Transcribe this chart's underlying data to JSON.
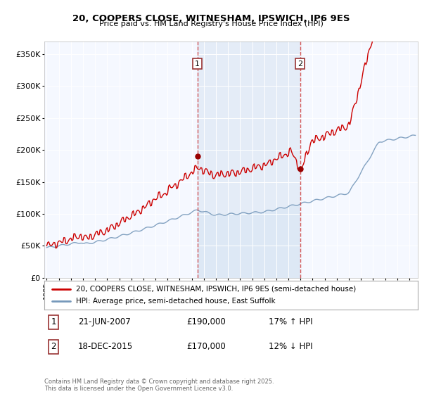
{
  "title1": "20, COOPERS CLOSE, WITNESHAM, IPSWICH, IP6 9ES",
  "title2": "Price paid vs. HM Land Registry's House Price Index (HPI)",
  "ylabel_ticks": [
    "£0",
    "£50K",
    "£100K",
    "£150K",
    "£200K",
    "£250K",
    "£300K",
    "£350K"
  ],
  "ytick_values": [
    0,
    50000,
    100000,
    150000,
    200000,
    250000,
    300000,
    350000
  ],
  "ylim": [
    0,
    370000
  ],
  "xlim_start": 1994.8,
  "xlim_end": 2025.7,
  "marker1_x": 2007.47,
  "marker1_y": 190000,
  "marker2_x": 2015.97,
  "marker2_y": 170000,
  "vline1_x": 2007.47,
  "vline2_x": 2015.97,
  "line1_color": "#cc0000",
  "line2_color": "#7799bb",
  "fill_color": "#dde8f5",
  "legend_line1": "20, COOPERS CLOSE, WITNESHAM, IPSWICH, IP6 9ES (semi-detached house)",
  "legend_line2": "HPI: Average price, semi-detached house, East Suffolk",
  "sale1_date": "21-JUN-2007",
  "sale1_price": "£190,000",
  "sale1_hpi": "17% ↑ HPI",
  "sale2_date": "18-DEC-2015",
  "sale2_price": "£170,000",
  "sale2_hpi": "12% ↓ HPI",
  "footnote": "Contains HM Land Registry data © Crown copyright and database right 2025.\nThis data is licensed under the Open Government Licence v3.0.",
  "background_color": "#ffffff",
  "plot_bg_color": "#f5f8ff"
}
